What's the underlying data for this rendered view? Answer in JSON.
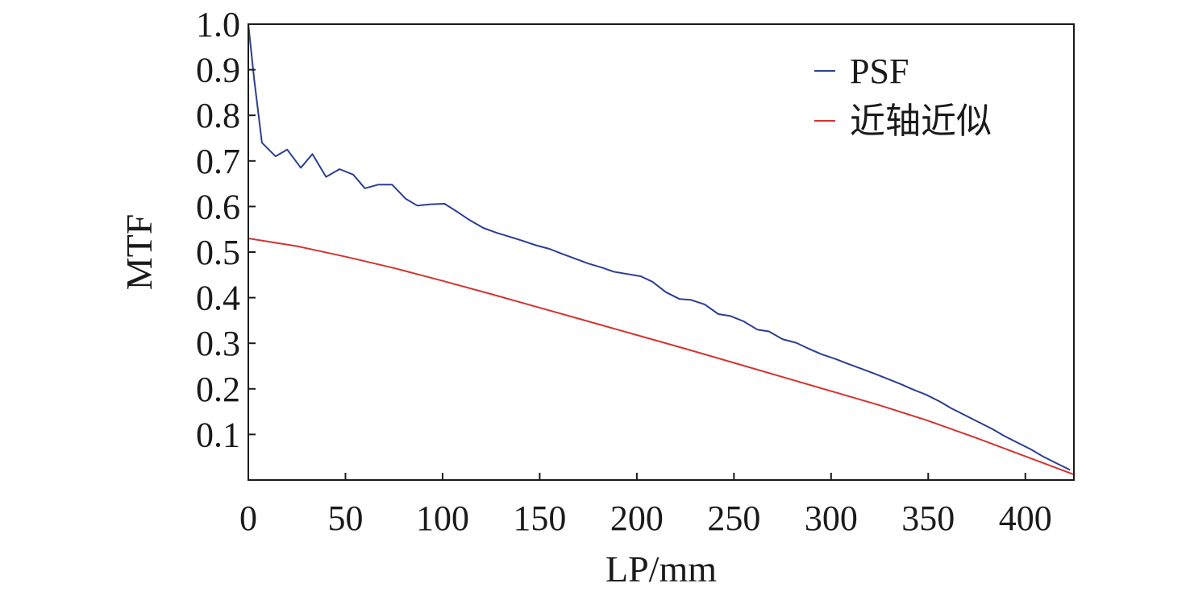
{
  "chart_data": {
    "type": "line",
    "title": "",
    "xlabel": "LP/mm",
    "ylabel": "MTF",
    "xlim": [
      0,
      425
    ],
    "ylim": [
      0,
      1.0
    ],
    "xticks": [
      0,
      50,
      100,
      150,
      200,
      250,
      300,
      350,
      400
    ],
    "xtick_labels": [
      "0",
      "50",
      "100",
      "150",
      "200",
      "250",
      "300",
      "350",
      "400"
    ],
    "yticks": [
      0.1,
      0.2,
      0.3,
      0.4,
      0.5,
      0.6,
      0.7,
      0.8,
      0.9,
      1.0
    ],
    "ytick_labels": [
      "0.1",
      "0.2",
      "0.3",
      "0.4",
      "0.5",
      "0.6",
      "0.7",
      "0.8",
      "0.9",
      "1.0"
    ],
    "grid": false,
    "legend_position": "top-right",
    "series": [
      {
        "name": "PSF",
        "color": "#2c3f8f",
        "x": [
          0,
          3,
          7,
          14,
          20,
          27,
          33,
          40,
          47,
          54,
          60,
          67,
          74,
          81,
          87,
          94,
          101,
          107,
          114,
          121,
          128,
          135,
          141,
          148,
          155,
          161,
          168,
          175,
          182,
          188,
          195,
          202,
          208,
          215,
          222,
          228,
          235,
          242,
          248,
          255,
          262,
          268,
          275,
          282,
          288,
          295,
          302,
          308,
          315,
          322,
          329,
          336,
          342,
          349,
          356,
          362,
          369,
          376,
          383,
          389,
          396,
          403,
          409,
          416,
          423
        ],
        "y": [
          1.0,
          0.88,
          0.74,
          0.71,
          0.725,
          0.685,
          0.715,
          0.665,
          0.682,
          0.67,
          0.64,
          0.648,
          0.648,
          0.617,
          0.602,
          0.605,
          0.606,
          0.59,
          0.57,
          0.553,
          0.542,
          0.533,
          0.525,
          0.515,
          0.507,
          0.497,
          0.486,
          0.475,
          0.466,
          0.457,
          0.452,
          0.447,
          0.435,
          0.412,
          0.397,
          0.395,
          0.385,
          0.364,
          0.36,
          0.348,
          0.33,
          0.326,
          0.309,
          0.301,
          0.289,
          0.276,
          0.266,
          0.256,
          0.245,
          0.234,
          0.222,
          0.21,
          0.199,
          0.187,
          0.172,
          0.157,
          0.142,
          0.127,
          0.112,
          0.097,
          0.082,
          0.067,
          0.052,
          0.037,
          0.022
        ]
      },
      {
        "name": "近轴近似",
        "color": "#d2342f",
        "x": [
          0,
          25,
          50,
          75,
          100,
          125,
          150,
          175,
          200,
          225,
          250,
          275,
          300,
          325,
          350,
          375,
          400,
          425
        ],
        "y": [
          0.53,
          0.513,
          0.49,
          0.465,
          0.437,
          0.408,
          0.378,
          0.348,
          0.318,
          0.288,
          0.257,
          0.226,
          0.195,
          0.164,
          0.13,
          0.092,
          0.052,
          0.012
        ]
      }
    ]
  }
}
